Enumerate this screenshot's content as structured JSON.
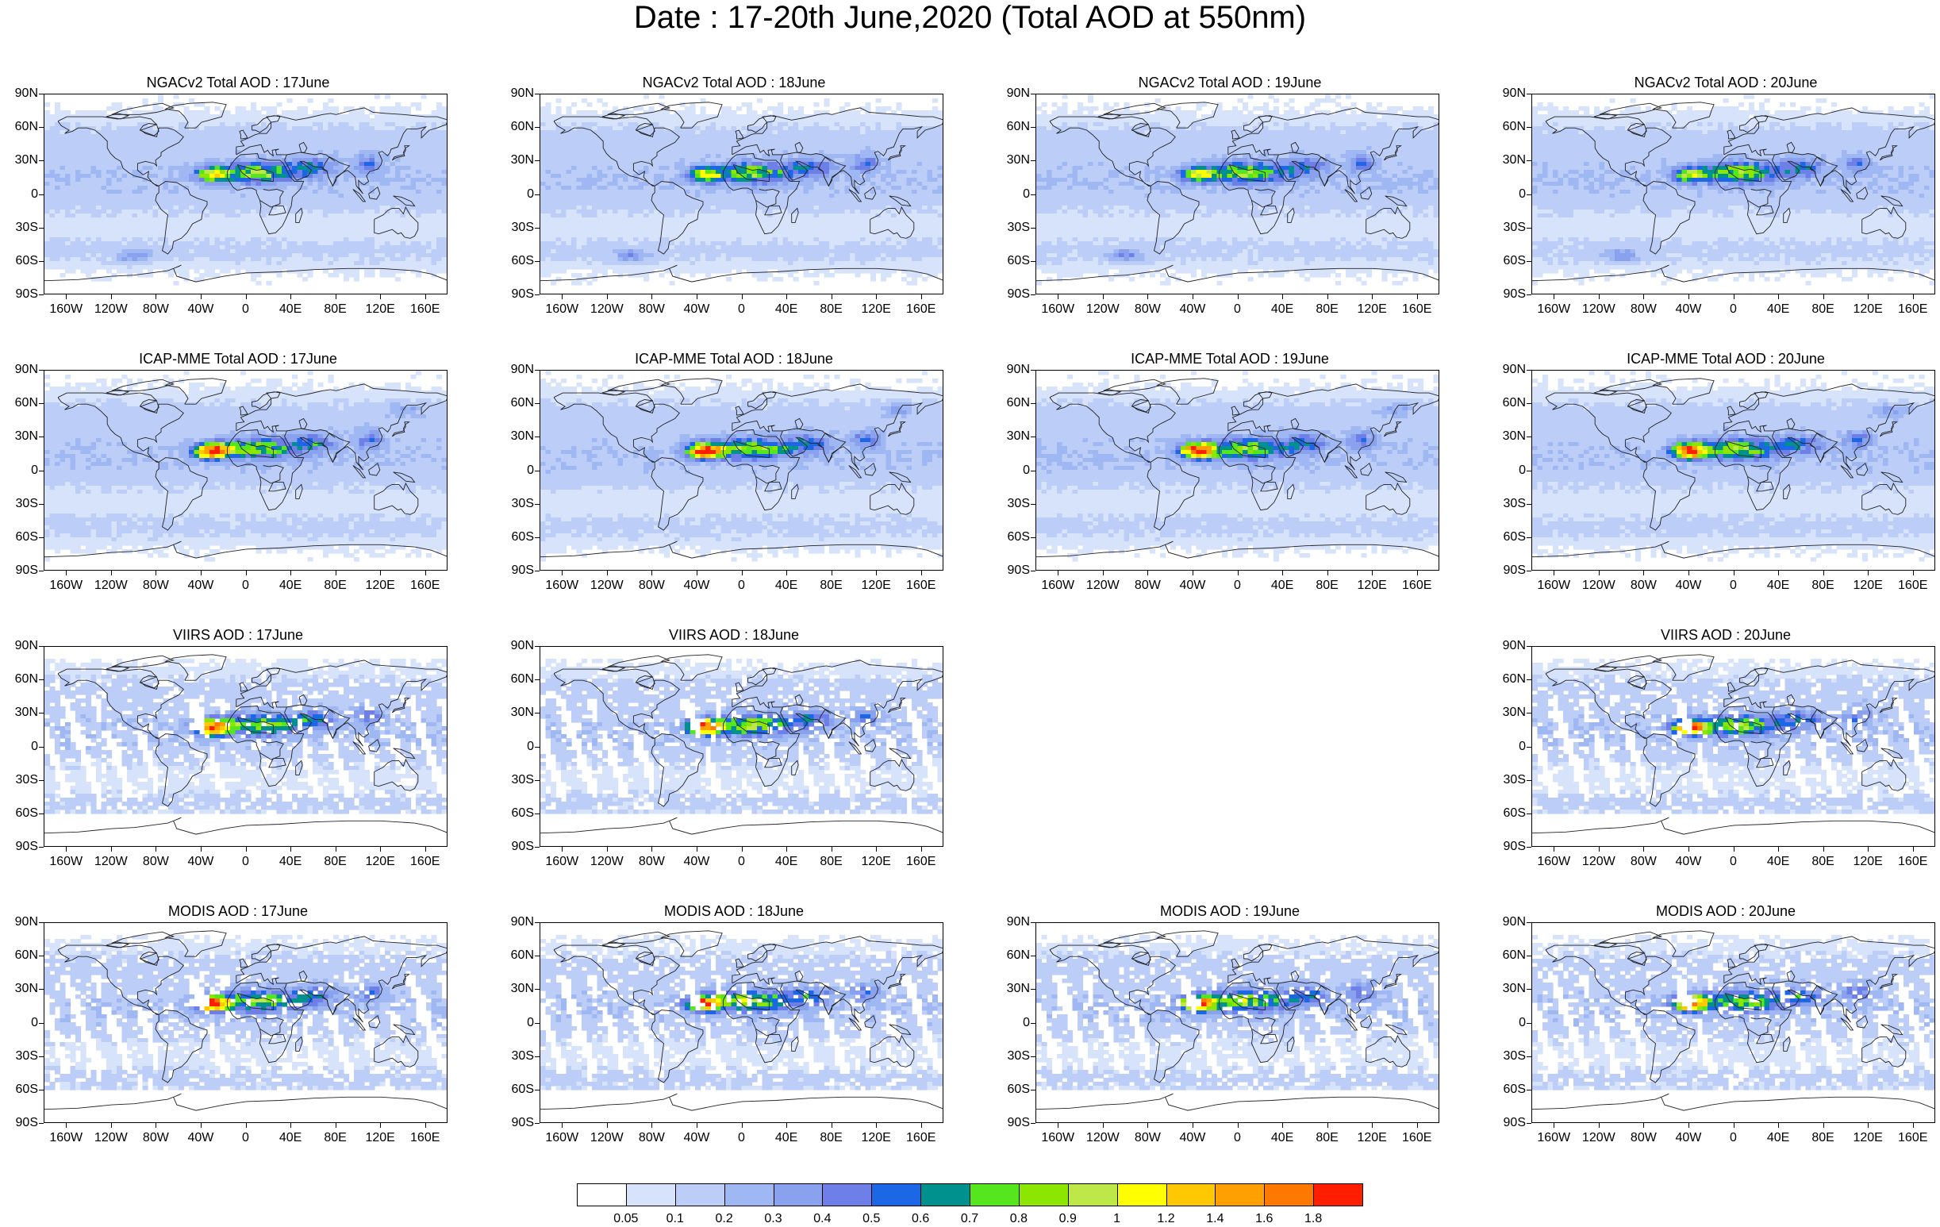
{
  "title": "Date : 17-20th June,2020 (Total AOD at 550nm)",
  "lat_labels": [
    "90N",
    "60N",
    "30N",
    "0",
    "30S",
    "60S",
    "90S"
  ],
  "lon_labels": [
    "160W",
    "120W",
    "80W",
    "40W",
    "0",
    "40E",
    "80E",
    "120E",
    "160E"
  ],
  "panels": [
    {
      "title": "NGACv2 Total AOD : 17June",
      "dataset": "NGACv2",
      "day": "17"
    },
    {
      "title": "NGACv2 Total AOD : 18June",
      "dataset": "NGACv2",
      "day": "18"
    },
    {
      "title": "NGACv2 Total AOD : 19June",
      "dataset": "NGACv2",
      "day": "19"
    },
    {
      "title": "NGACv2 Total AOD : 20June",
      "dataset": "NGACv2",
      "day": "20"
    },
    {
      "title": "ICAP-MME Total AOD : 17June",
      "dataset": "ICAP-MME",
      "day": "17"
    },
    {
      "title": "ICAP-MME Total AOD : 18June",
      "dataset": "ICAP-MME",
      "day": "18"
    },
    {
      "title": "ICAP-MME Total AOD : 19June",
      "dataset": "ICAP-MME",
      "day": "19"
    },
    {
      "title": "ICAP-MME Total AOD : 20June",
      "dataset": "ICAP-MME",
      "day": "20"
    },
    {
      "title": "VIIRS AOD : 17June",
      "dataset": "VIIRS",
      "day": "17"
    },
    {
      "title": "VIIRS AOD : 18June",
      "dataset": "VIIRS",
      "day": "18"
    },
    null,
    {
      "title": "VIIRS AOD : 20June",
      "dataset": "VIIRS",
      "day": "20"
    },
    {
      "title": "MODIS AOD : 17June",
      "dataset": "MODIS",
      "day": "17"
    },
    {
      "title": "MODIS AOD : 18June",
      "dataset": "MODIS",
      "day": "18"
    },
    {
      "title": "MODIS AOD : 19June",
      "dataset": "MODIS",
      "day": "19"
    },
    {
      "title": "MODIS AOD : 20June",
      "dataset": "MODIS",
      "day": "20"
    }
  ],
  "colorbar": {
    "colors": [
      "#ffffff",
      "#d7e2fb",
      "#bccdf7",
      "#9fb7f2",
      "#8aa2ee",
      "#6f7fe8",
      "#1c67e6",
      "#00918f",
      "#55e61e",
      "#8ce600",
      "#bde848",
      "#ffff00",
      "#ffc800",
      "#ffa000",
      "#ff7800",
      "#ff1e00"
    ],
    "labels": [
      "0.05",
      "0.1",
      "0.2",
      "0.3",
      "0.4",
      "0.5",
      "0.6",
      "0.7",
      "0.8",
      "0.9",
      "1",
      "1.2",
      "1.4",
      "1.6",
      "1.8"
    ]
  }
}
